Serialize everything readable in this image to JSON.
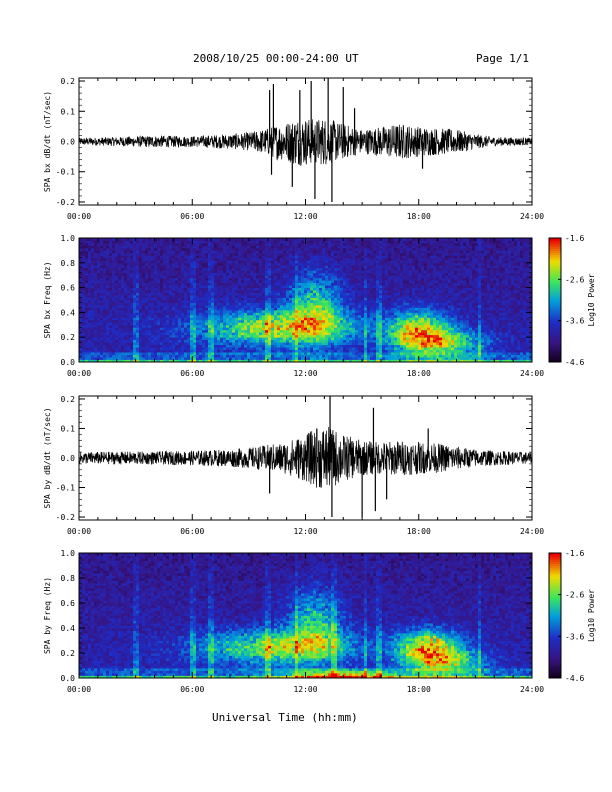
{
  "header": {
    "title": "2008/10/25  00:00-24:00 UT",
    "page": "Page 1/1"
  },
  "footer": {
    "xlabel": "Universal Time (hh:mm)"
  },
  "chart_data": [
    {
      "type": "line",
      "ylabel": "SPA bx dB/dt (nT/sec)",
      "ylim": [
        -0.21,
        0.21
      ],
      "yticks": [
        -0.2,
        -0.1,
        0.0,
        0.1,
        0.2
      ],
      "ytick_labels": [
        "-0.2",
        "-0.1",
        "0.0",
        "0.1",
        "0.2"
      ],
      "xlim": [
        0,
        24
      ],
      "xtick_labels": [
        "00:00",
        "06:00",
        "12:00",
        "18:00",
        "24:00"
      ],
      "x_hours": [
        0,
        2,
        4,
        6,
        8,
        9,
        10,
        10.5,
        11,
        11.5,
        12,
        12.5,
        13,
        13.5,
        14,
        15,
        16,
        17,
        18,
        19,
        20,
        21,
        22,
        24
      ],
      "amplitude": [
        0.012,
        0.015,
        0.02,
        0.018,
        0.025,
        0.03,
        0.045,
        0.06,
        0.065,
        0.08,
        0.08,
        0.075,
        0.08,
        0.07,
        0.06,
        0.04,
        0.05,
        0.06,
        0.05,
        0.045,
        0.04,
        0.025,
        0.015,
        0.012
      ],
      "spikes": [
        {
          "x": 10.1,
          "y": 0.17
        },
        {
          "x": 10.2,
          "y": -0.11
        },
        {
          "x": 10.3,
          "y": 0.19
        },
        {
          "x": 11.3,
          "y": -0.15
        },
        {
          "x": 11.7,
          "y": 0.17
        },
        {
          "x": 12.3,
          "y": 0.2
        },
        {
          "x": 12.5,
          "y": -0.19
        },
        {
          "x": 13.2,
          "y": 0.21
        },
        {
          "x": 13.4,
          "y": -0.2
        },
        {
          "x": 14.0,
          "y": 0.18
        },
        {
          "x": 14.6,
          "y": 0.11
        },
        {
          "x": 18.2,
          "y": -0.09
        }
      ]
    },
    {
      "type": "heatmap",
      "ylabel": "SPA bx Freq (Hz)",
      "ylim": [
        0,
        1.0
      ],
      "yticks": [
        0,
        0.2,
        0.4,
        0.6,
        0.8,
        1.0
      ],
      "ytick_labels": [
        "0.0",
        "0.2",
        "0.4",
        "0.6",
        "0.8",
        "1.0"
      ],
      "xlim": [
        0,
        24
      ],
      "xtick_labels": [
        "00:00",
        "06:00",
        "12:00",
        "18:00",
        "24:00"
      ],
      "colorbar": {
        "label": "Log10 Power",
        "range": [
          -4.6,
          -1.6
        ],
        "tick_labels": [
          "-1.6",
          "-2.6",
          "-3.6",
          "-4.6"
        ]
      },
      "features": [
        {
          "t": 10.5,
          "f": 0.28,
          "st": 3.0,
          "sf": 0.1,
          "amp": 1.3
        },
        {
          "t": 12.5,
          "f": 0.45,
          "st": 1.0,
          "sf": 0.2,
          "amp": 1.0
        },
        {
          "t": 18.0,
          "f": 0.25,
          "st": 1.2,
          "sf": 0.12,
          "amp": 1.4
        },
        {
          "t": 19.5,
          "f": 0.15,
          "st": 1.5,
          "sf": 0.08,
          "amp": 1.0
        }
      ],
      "vlines": [
        3.0,
        6.0,
        7.0,
        10.0,
        11.5,
        15.2,
        15.8,
        16.0,
        21.2
      ]
    },
    {
      "type": "line",
      "ylabel": "SPA by dB/dt (nT/sec)",
      "ylim": [
        -0.21,
        0.21
      ],
      "yticks": [
        -0.2,
        -0.1,
        0.0,
        0.1,
        0.2
      ],
      "ytick_labels": [
        "-0.2",
        "-0.1",
        "0.0",
        "0.1",
        "0.2"
      ],
      "xlim": [
        0,
        24
      ],
      "xtick_labels": [
        "00:00",
        "06:00",
        "12:00",
        "18:00",
        "24:00"
      ],
      "x_hours": [
        0,
        2,
        4,
        6,
        8,
        9,
        10,
        10.5,
        11,
        11.5,
        12,
        12.5,
        13,
        13.5,
        14,
        15,
        16,
        17,
        18,
        19,
        20,
        21,
        22,
        24
      ],
      "amplitude": [
        0.02,
        0.022,
        0.022,
        0.025,
        0.03,
        0.035,
        0.045,
        0.05,
        0.055,
        0.07,
        0.08,
        0.1,
        0.11,
        0.1,
        0.08,
        0.06,
        0.055,
        0.06,
        0.055,
        0.05,
        0.04,
        0.03,
        0.025,
        0.02
      ],
      "spikes": [
        {
          "x": 10.1,
          "y": -0.12
        },
        {
          "x": 12.6,
          "y": 0.1
        },
        {
          "x": 13.3,
          "y": 0.21
        },
        {
          "x": 13.4,
          "y": -0.2
        },
        {
          "x": 15.0,
          "y": -0.2
        },
        {
          "x": 15.6,
          "y": 0.17
        },
        {
          "x": 15.7,
          "y": -0.18
        },
        {
          "x": 16.3,
          "y": -0.14
        },
        {
          "x": 18.5,
          "y": 0.1
        }
      ]
    },
    {
      "type": "heatmap",
      "ylabel": "SPA by Freq (Hz)",
      "ylim": [
        0,
        1.0
      ],
      "yticks": [
        0,
        0.2,
        0.4,
        0.6,
        0.8,
        1.0
      ],
      "ytick_labels": [
        "0.0",
        "0.2",
        "0.4",
        "0.6",
        "0.8",
        "1.0"
      ],
      "xlim": [
        0,
        24
      ],
      "xtick_labels": [
        "00:00",
        "06:00",
        "12:00",
        "18:00",
        "24:00"
      ],
      "colorbar": {
        "label": "Log10 Power",
        "range": [
          -4.6,
          -1.6
        ],
        "tick_labels": [
          "-1.6",
          "-2.6",
          "-3.6",
          "-4.6"
        ]
      },
      "features": [
        {
          "t": 10.5,
          "f": 0.25,
          "st": 3.0,
          "sf": 0.1,
          "amp": 1.2
        },
        {
          "t": 12.5,
          "f": 0.45,
          "st": 1.0,
          "sf": 0.2,
          "amp": 0.9
        },
        {
          "t": 18.5,
          "f": 0.25,
          "st": 1.2,
          "sf": 0.1,
          "amp": 1.5
        },
        {
          "t": 19.5,
          "f": 0.12,
          "st": 1.5,
          "sf": 0.08,
          "amp": 1.0
        },
        {
          "t": 14.0,
          "f": 0.02,
          "st": 2.0,
          "sf": 0.03,
          "amp": 1.2
        }
      ],
      "vlines": [
        3.0,
        6.0,
        7.0,
        10.0,
        11.5,
        13.5,
        15.2,
        15.8,
        16.0,
        21.2
      ]
    }
  ]
}
